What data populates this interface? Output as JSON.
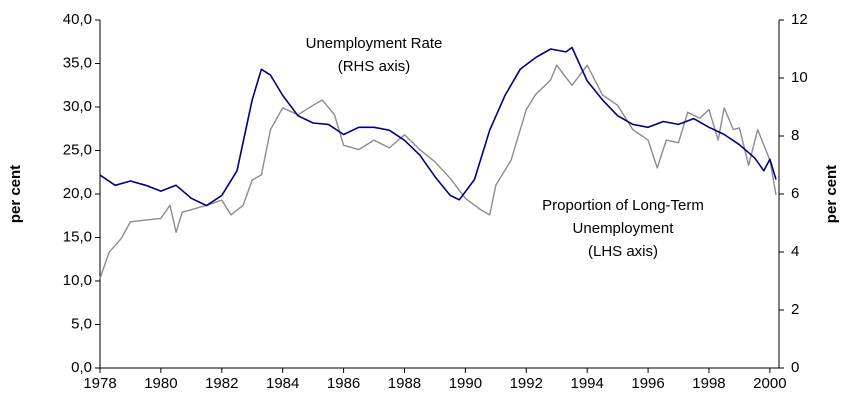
{
  "chart_data": {
    "type": "line",
    "y_label": "per cent",
    "y2_label": "per cent",
    "annotations": [
      [
        "Unemployment Rate",
        "(RHS axis)"
      ],
      [
        "Proportion of Long-Term",
        "Unemployment",
        "(LHS axis)"
      ]
    ],
    "xlim": [
      1978,
      2000.3
    ],
    "xticks": [
      1978,
      1980,
      1982,
      1984,
      1986,
      1988,
      1990,
      1992,
      1994,
      1996,
      1998,
      2000
    ],
    "ylim": [
      0,
      40
    ],
    "yticks": [
      {
        "value": 0,
        "label": "0,0"
      },
      {
        "value": 5,
        "label": "5,0"
      },
      {
        "value": 10,
        "label": "10,0"
      },
      {
        "value": 15,
        "label": "15,0"
      },
      {
        "value": 20,
        "label": "20,0"
      },
      {
        "value": 25,
        "label": "25,0"
      },
      {
        "value": 30,
        "label": "30,0"
      },
      {
        "value": 35,
        "label": "35,0"
      },
      {
        "value": 40,
        "label": "40,0"
      }
    ],
    "y2lim": [
      0,
      12
    ],
    "y2ticks": [
      0,
      2,
      4,
      6,
      8,
      10,
      12
    ],
    "series": [
      {
        "color": "#000080",
        "axis": "y2",
        "x": [
          1978,
          1978.5,
          1979,
          1979.5,
          1980,
          1980.5,
          1981,
          1981.5,
          1982,
          1982.5,
          1983,
          1983.3,
          1983.6,
          1984,
          1984.5,
          1985,
          1985.5,
          1986,
          1986.5,
          1987,
          1987.5,
          1988,
          1988.5,
          1989,
          1989.5,
          1989.8,
          1990.3,
          1990.8,
          1991.3,
          1991.8,
          1992.3,
          1992.8,
          1993.3,
          1993.5,
          1994,
          1994.5,
          1995,
          1995.5,
          1996,
          1996.5,
          1997,
          1997.5,
          1998,
          1998.5,
          1999,
          1999.5,
          1999.8,
          2000,
          2000.2
        ],
        "values": [
          6.65,
          6.3,
          6.45,
          6.3,
          6.1,
          6.3,
          5.85,
          5.6,
          5.95,
          6.8,
          9.25,
          10.3,
          10.1,
          9.4,
          8.7,
          8.45,
          8.4,
          8.05,
          8.3,
          8.3,
          8.2,
          7.85,
          7.35,
          6.6,
          5.95,
          5.8,
          6.5,
          8.2,
          9.4,
          10.3,
          10.7,
          11.0,
          10.9,
          11.05,
          9.9,
          9.25,
          8.7,
          8.4,
          8.3,
          8.5,
          8.4,
          8.6,
          8.3,
          8.05,
          7.7,
          7.25,
          6.8,
          7.2,
          6.5
        ]
      },
      {
        "color": "#8c8c8c",
        "x": [
          1978,
          1978.3,
          1978.7,
          1979,
          1979.5,
          1980,
          1980.3,
          1980.5,
          1980.7,
          1981,
          1981.5,
          1982,
          1982.3,
          1982.7,
          1983,
          1983.3,
          1983.6,
          1984,
          1984.5,
          1985,
          1985.3,
          1985.7,
          1986,
          1986.5,
          1987,
          1987.5,
          1988,
          1988.5,
          1989,
          1989.5,
          1990,
          1990.5,
          1990.8,
          1991,
          1991.5,
          1992,
          1992.3,
          1992.8,
          1993,
          1993.5,
          1994,
          1994.5,
          1995,
          1995.5,
          1996,
          1996.3,
          1996.6,
          1997,
          1997.3,
          1997.7,
          1998,
          1998.3,
          1998.5,
          1998.8,
          1999,
          1999.3,
          1999.6,
          2000,
          2000.2
        ],
        "values": [
          10.3,
          13.3,
          14.9,
          16.8,
          17.0,
          17.2,
          18.7,
          15.6,
          17.9,
          18.2,
          18.7,
          19.3,
          17.6,
          18.7,
          21.6,
          22.2,
          27.4,
          29.9,
          29.1,
          30.2,
          30.8,
          29.1,
          25.6,
          25.1,
          26.2,
          25.3,
          26.8,
          25.1,
          23.7,
          21.8,
          19.5,
          18.2,
          17.6,
          21.0,
          23.9,
          29.7,
          31.4,
          33.1,
          34.8,
          32.5,
          34.8,
          31.4,
          30.2,
          27.4,
          26.2,
          23.0,
          26.2,
          25.9,
          29.4,
          28.7,
          29.7,
          26.2,
          29.9,
          27.4,
          27.6,
          23.3,
          27.4,
          23.9,
          19.9
        ]
      }
    ]
  }
}
